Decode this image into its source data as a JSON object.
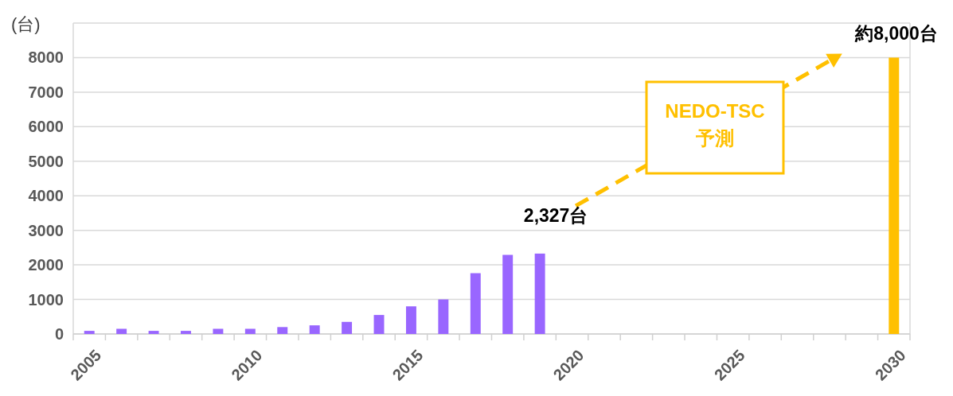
{
  "chart_data": {
    "type": "bar",
    "ylabel": "(台)",
    "categories": [
      "2005",
      null,
      null,
      null,
      null,
      "2010",
      null,
      null,
      null,
      null,
      "2015",
      null,
      null,
      null,
      null,
      "2020",
      null,
      null,
      null,
      null,
      "2025",
      null,
      null,
      null,
      null,
      "2030"
    ],
    "values": [
      90,
      150,
      90,
      90,
      150,
      150,
      200,
      250,
      350,
      550,
      800,
      1000,
      1760,
      2290,
      2327,
      null,
      null,
      null,
      null,
      null,
      null,
      null,
      null,
      null,
      null,
      8000
    ],
    "colors": [
      "#9966ff",
      "#9966ff",
      "#9966ff",
      "#9966ff",
      "#9966ff",
      "#9966ff",
      "#9966ff",
      "#9966ff",
      "#9966ff",
      "#9966ff",
      "#9966ff",
      "#9966ff",
      "#9966ff",
      "#9966ff",
      "#9966ff",
      null,
      null,
      null,
      null,
      null,
      null,
      null,
      null,
      null,
      null,
      "#ffc000"
    ],
    "value_labels": [
      null,
      null,
      null,
      null,
      null,
      null,
      null,
      null,
      null,
      null,
      null,
      null,
      null,
      null,
      "2,327台",
      null,
      null,
      null,
      null,
      null,
      null,
      null,
      null,
      null,
      null,
      "約8,000台"
    ],
    "annotations": [
      "NEDO-TSC\n予測"
    ],
    "ylim": [
      0,
      9000
    ],
    "yticks": [
      0,
      1000,
      2000,
      3000,
      4000,
      5000,
      6000,
      7000,
      8000
    ],
    "grid": "y"
  }
}
